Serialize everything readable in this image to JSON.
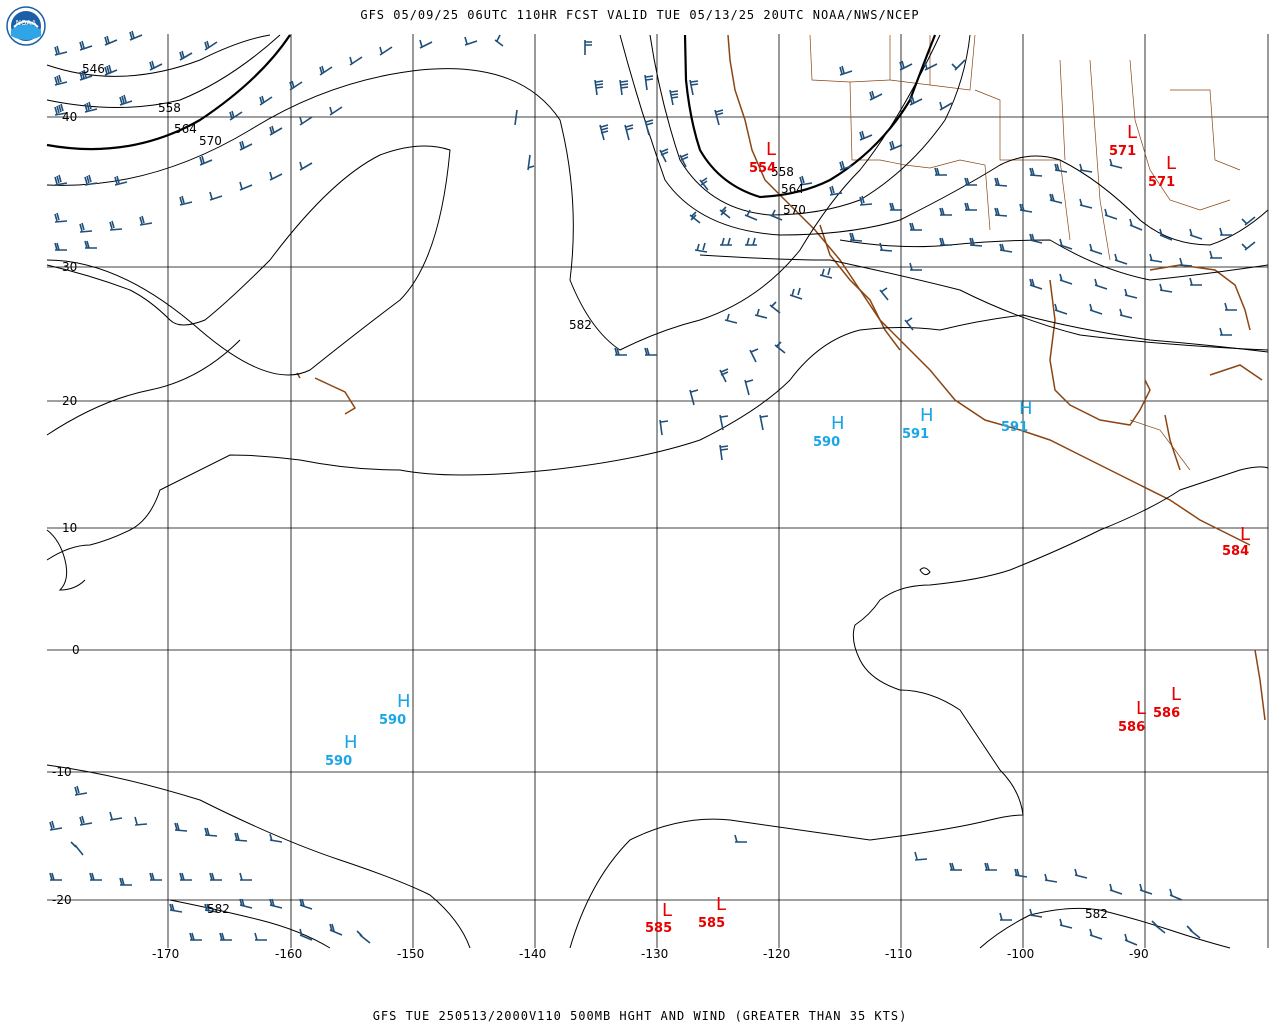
{
  "header": {
    "title": "GFS 05/09/25 06UTC 110HR FCST VALID TUE 05/13/25 20UTC NOAA/NWS/NCEP"
  },
  "footer": {
    "text": "GFS TUE 250513/2000V110 500MB HGHT AND WIND (GREATER THAN 35 KTS)"
  },
  "logo": {
    "text": "NOAA",
    "icon": "noaa-logo-icon"
  },
  "colors": {
    "contour": "#000000",
    "coast": "#8b4513",
    "barb": "#1f4e79",
    "high": "#1aa6e6",
    "low": "#e60000"
  },
  "axes": {
    "lon_labels": [
      "-170",
      "-160",
      "-150",
      "-140",
      "-130",
      "-120",
      "-110",
      "-100",
      "-90"
    ],
    "lat_labels": [
      "40",
      "30",
      "20",
      "10",
      "0",
      "-10",
      "-20"
    ]
  },
  "contour_labels": [
    "546",
    "558",
    "564",
    "570",
    "582",
    "558",
    "564",
    "570",
    "582",
    "582"
  ],
  "highs": [
    {
      "label": "H",
      "value": "590"
    },
    {
      "label": "H",
      "value": "591"
    },
    {
      "label": "H",
      "value": "591"
    },
    {
      "label": "H",
      "value": "590"
    },
    {
      "label": "H",
      "value": "590"
    }
  ],
  "lows": [
    {
      "label": "L",
      "value": "554"
    },
    {
      "label": "L",
      "value": "571"
    },
    {
      "label": "L",
      "value": "571"
    },
    {
      "label": "L",
      "value": "584"
    },
    {
      "label": "L",
      "value": "586"
    },
    {
      "label": "L",
      "value": "586"
    },
    {
      "label": "L",
      "value": "585"
    },
    {
      "label": "L",
      "value": "585"
    }
  ]
}
